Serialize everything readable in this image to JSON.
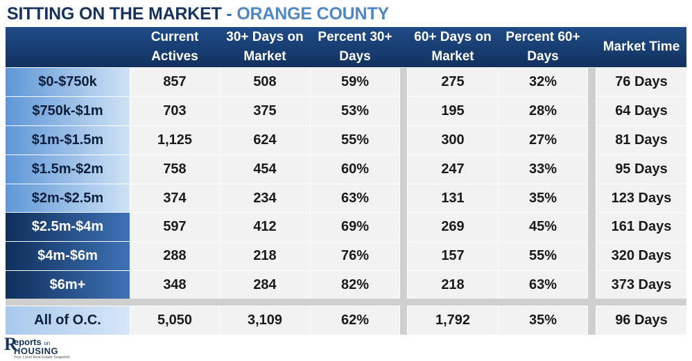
{
  "title": {
    "main": "SITTING ON THE MARKET",
    "separator": " - ",
    "sub": "ORANGE COUNTY"
  },
  "columns": [
    {
      "line1": "Current",
      "line2": "Actives"
    },
    {
      "line1": "30+ Days on",
      "line2": "Market"
    },
    {
      "line1": "Percent 30+",
      "line2": "Days"
    },
    {
      "line1": "60+ Days on",
      "line2": "Market"
    },
    {
      "line1": "Percent 60+",
      "line2": "Days"
    },
    {
      "line1": "",
      "line2": "Market Time"
    }
  ],
  "rows": [
    {
      "label": "$0-$750k",
      "values": [
        "857",
        "508",
        "59%",
        "275",
        "32%",
        "76 Days"
      ]
    },
    {
      "label": "$750k-$1m",
      "values": [
        "703",
        "375",
        "53%",
        "195",
        "28%",
        "64 Days"
      ]
    },
    {
      "label": "$1m-$1.5m",
      "values": [
        "1,125",
        "624",
        "55%",
        "300",
        "27%",
        "81 Days"
      ]
    },
    {
      "label": "$1.5m-$2m",
      "values": [
        "758",
        "454",
        "60%",
        "247",
        "33%",
        "95 Days"
      ]
    },
    {
      "label": "$2m-$2.5m",
      "values": [
        "374",
        "234",
        "63%",
        "131",
        "35%",
        "123 Days"
      ]
    },
    {
      "label": "$2.5m-$4m",
      "values": [
        "597",
        "412",
        "69%",
        "269",
        "45%",
        "161 Days"
      ]
    },
    {
      "label": "$4m-$6m",
      "values": [
        "288",
        "218",
        "76%",
        "157",
        "55%",
        "320 Days"
      ]
    },
    {
      "label": "$6m+",
      "values": [
        "348",
        "284",
        "82%",
        "218",
        "63%",
        "373 Days"
      ]
    }
  ],
  "total": {
    "label": "All of O.C.",
    "values": [
      "5,050",
      "3,109",
      "62%",
      "1,792",
      "35%",
      "96 Days"
    ]
  },
  "logo": {
    "r": "R",
    "reports": "eports",
    "on": "on",
    "housing": "HOUSING",
    "tagline": "Your Local Real Estate Snapshot"
  },
  "colors": {
    "title_main": "#16335e",
    "title_sub": "#4f86c6",
    "header": "#1a3f73",
    "label_light": "#8fb8e6",
    "label_dark": "#1c4680",
    "cell": "#f2f2f2",
    "separator": "#cfcfcf"
  }
}
